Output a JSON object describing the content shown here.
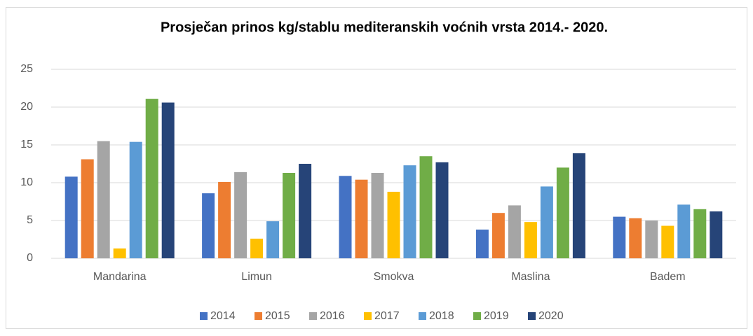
{
  "chart_data": {
    "type": "bar",
    "title": "Prosječan prinos kg/stablu mediteranskih  voćnih vrsta 2014.- 2020.",
    "categories": [
      "Mandarina",
      "Limun",
      "Smokva",
      "Maslina",
      "Badem"
    ],
    "series": [
      {
        "name": "2014",
        "color": "#4472c4",
        "values": [
          10.8,
          8.6,
          10.9,
          3.8,
          5.5
        ]
      },
      {
        "name": "2015",
        "color": "#ed7d31",
        "values": [
          13.1,
          10.1,
          10.4,
          6.0,
          5.3
        ]
      },
      {
        "name": "2016",
        "color": "#a5a5a5",
        "values": [
          15.5,
          11.4,
          11.3,
          7.0,
          5.0
        ]
      },
      {
        "name": "2017",
        "color": "#ffc000",
        "values": [
          1.3,
          2.6,
          8.8,
          4.8,
          4.3
        ]
      },
      {
        "name": "2018",
        "color": "#5b9bd5",
        "values": [
          15.4,
          4.9,
          12.3,
          9.5,
          7.1
        ]
      },
      {
        "name": "2019",
        "color": "#70ad47",
        "values": [
          21.1,
          11.3,
          13.5,
          12.0,
          6.5
        ]
      },
      {
        "name": "2020",
        "color": "#264478",
        "values": [
          20.6,
          12.5,
          12.7,
          13.9,
          6.2
        ]
      }
    ],
    "ylim": [
      0,
      25
    ],
    "yticks": [
      0,
      5,
      10,
      15,
      20,
      25
    ],
    "grid": true,
    "legend": "bottom"
  }
}
